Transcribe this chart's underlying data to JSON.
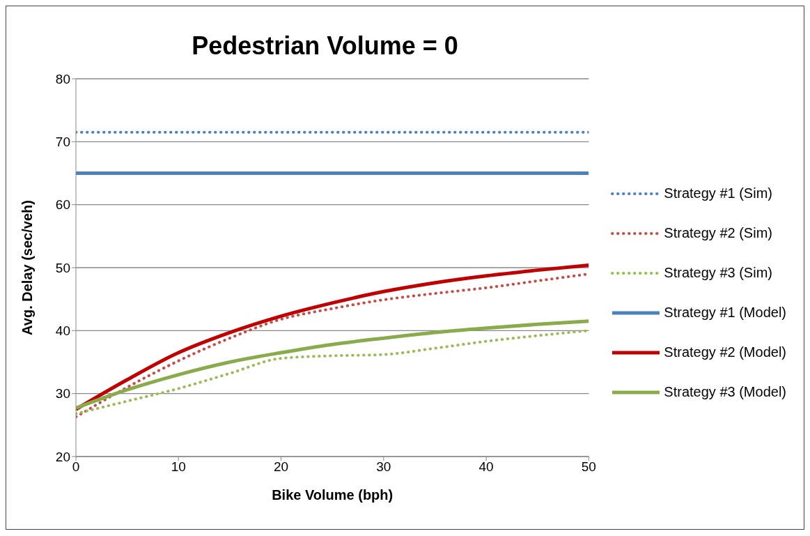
{
  "chart_data": {
    "type": "line",
    "title": "Pedestrian Volume = 0",
    "xlabel": "Bike Volume (bph)",
    "ylabel": "Avg. Delay (sec/veh)",
    "x": [
      0,
      5,
      10,
      15,
      20,
      25,
      30,
      35,
      40,
      45,
      50
    ],
    "xlim": [
      0,
      50
    ],
    "xticks": [
      0,
      10,
      20,
      30,
      40,
      50
    ],
    "ylim": [
      20,
      80
    ],
    "yticks": [
      20,
      30,
      40,
      50,
      60,
      70,
      80
    ],
    "grid": "y",
    "legend": "right",
    "marker": "none",
    "series": [
      {
        "name": "Strategy #1 (Sim)",
        "color": "#4f81bd",
        "line_style": "dotted",
        "values": [
          71.5,
          71.5,
          71.5,
          71.5,
          71.5,
          71.5,
          71.5,
          71.5,
          71.5,
          71.5,
          71.5
        ]
      },
      {
        "name": "Strategy #2 (Sim)",
        "color": "#c0504d",
        "line_style": "dotted",
        "values": [
          26.3,
          31,
          35.2,
          38.8,
          41.8,
          43.5,
          44.9,
          45.9,
          46.8,
          47.9,
          49.0
        ]
      },
      {
        "name": "Strategy #3 (Sim)",
        "color": "#9bbb59",
        "line_style": "dotted",
        "values": [
          26.8,
          28.8,
          30.8,
          33.2,
          35.6,
          36.0,
          36.2,
          37.2,
          38.3,
          39.2,
          40.0
        ]
      },
      {
        "name": "Strategy #1 (Model)",
        "color": "#4f81bd",
        "line_style": "solid",
        "values": [
          65,
          65,
          65,
          65,
          65,
          65,
          65,
          65,
          65,
          65,
          65
        ]
      },
      {
        "name": "Strategy #2 (Model)",
        "color": "#c00000",
        "line_style": "solid",
        "values": [
          27.5,
          32.2,
          36.5,
          39.7,
          42.3,
          44.4,
          46.2,
          47.6,
          48.7,
          49.6,
          50.4
        ]
      },
      {
        "name": "Strategy #3 (Model)",
        "color": "#8aab4c",
        "line_style": "solid",
        "values": [
          27.7,
          30.6,
          33.0,
          35.0,
          36.5,
          37.8,
          38.8,
          39.7,
          40.4,
          41.0,
          41.5
        ]
      }
    ]
  }
}
